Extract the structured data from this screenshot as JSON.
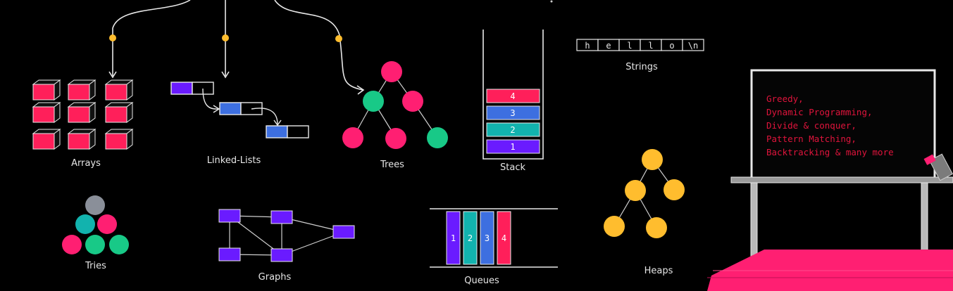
{
  "labels": {
    "arrays": "Arrays",
    "linked_lists": "Linked-Lists",
    "trees": "Trees",
    "stack": "Stack",
    "strings": "Strings",
    "tries": "Tries",
    "graphs": "Graphs",
    "queues": "Queues",
    "heaps": "Heaps"
  },
  "stack_items": [
    "4",
    "3",
    "2",
    "1"
  ],
  "queue_items": [
    "1",
    "2",
    "3",
    "4"
  ],
  "string_chars": [
    "h",
    "e",
    "l",
    "l",
    "o",
    "\\n"
  ],
  "board_lines": [
    "Greedy,",
    "Dynamic Programming,",
    "Divide & conquer,",
    "Pattern Matching,",
    "Backtracking & many more"
  ],
  "colors": {
    "pink": "#ff1f5a",
    "purple": "#6a1bff",
    "blue": "#3d6fe0",
    "teal": "#12b3ae",
    "green": "#18c987",
    "yellow": "#ffbd2e",
    "gray": "#8a8f99",
    "board_text": "#e0143c",
    "rug": "#ff1f72"
  }
}
